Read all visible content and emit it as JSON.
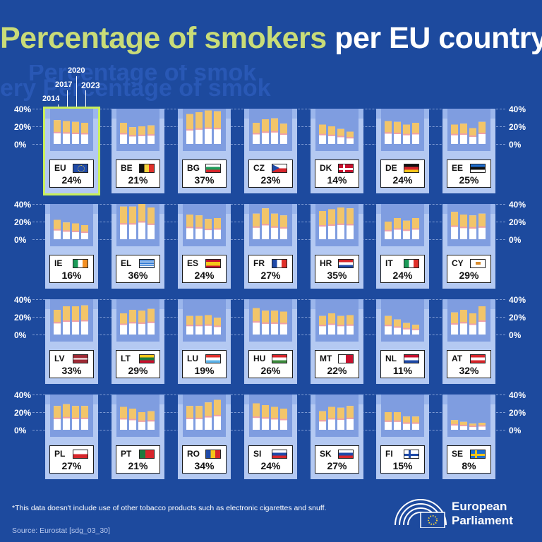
{
  "title": {
    "part1": "Percentage of smokers",
    "part2": "per EU country*"
  },
  "ghost_text": [
    "Percentage of smok",
    "ery Percentage of smok"
  ],
  "legend_years": [
    "2014",
    "2017",
    "2020",
    "2023"
  ],
  "axis_labels": [
    "40%",
    "20%",
    "0%"
  ],
  "footnote": "*This data doesn't include use of other tobacco products such as electronic cigarettes and snuff.",
  "source": "Source: Eurostat [sdg_03_30]",
  "logo": {
    "line1": "European",
    "line2": "Parliament",
    "icon": "european-parliament-hemicycle-icon"
  },
  "colors": {
    "background": "#1d4a9e",
    "title_accent": "#c9dc78",
    "card": "#b4c9f2",
    "filter": "#f2c56a",
    "paper": "#ffffff",
    "highlight": "#c9ef5a"
  },
  "chart_data": {
    "type": "bar",
    "title": "Percentage of smokers per EU country*",
    "series_years": [
      "2014",
      "2017",
      "2020",
      "2023"
    ],
    "ylim": [
      0,
      40
    ],
    "yticks": [
      "40%",
      "20%",
      "0%"
    ],
    "countries": [
      {
        "code": "EU",
        "label": "24%",
        "values": [
          27,
          26,
          25,
          24
        ],
        "flag": "eu"
      },
      {
        "code": "BE",
        "label": "21%",
        "values": [
          24,
          19,
          20,
          21
        ],
        "flag": "be"
      },
      {
        "code": "BG",
        "label": "37%",
        "values": [
          34,
          36,
          38,
          37
        ],
        "flag": "bg"
      },
      {
        "code": "CZ",
        "label": "23%",
        "values": [
          24,
          28,
          29,
          23
        ],
        "flag": "cz"
      },
      {
        "code": "DK",
        "label": "14%",
        "values": [
          22,
          20,
          17,
          14
        ],
        "flag": "dk"
      },
      {
        "code": "DE",
        "label": "24%",
        "values": [
          26,
          25,
          22,
          24
        ],
        "flag": "de"
      },
      {
        "code": "EE",
        "label": "25%",
        "values": [
          22,
          23,
          18,
          25
        ],
        "flag": "ee"
      },
      {
        "code": "IE",
        "label": "16%",
        "values": [
          22,
          19,
          18,
          16
        ],
        "flag": "ie"
      },
      {
        "code": "EL",
        "label": "36%",
        "values": [
          37,
          37,
          42,
          36
        ],
        "flag": "el"
      },
      {
        "code": "ES",
        "label": "24%",
        "values": [
          28,
          27,
          23,
          24
        ],
        "flag": "es"
      },
      {
        "code": "FR",
        "label": "27%",
        "values": [
          29,
          35,
          29,
          27
        ],
        "flag": "fr"
      },
      {
        "code": "HR",
        "label": "35%",
        "values": [
          32,
          34,
          36,
          35
        ],
        "flag": "hr"
      },
      {
        "code": "IT",
        "label": "24%",
        "values": [
          20,
          24,
          21,
          24
        ],
        "flag": "it"
      },
      {
        "code": "CY",
        "label": "29%",
        "values": [
          31,
          28,
          27,
          29
        ],
        "flag": "cy"
      },
      {
        "code": "LV",
        "label": "33%",
        "values": [
          28,
          32,
          32,
          33
        ],
        "flag": "lv"
      },
      {
        "code": "LT",
        "label": "29%",
        "values": [
          24,
          28,
          27,
          29
        ],
        "flag": "lt"
      },
      {
        "code": "LU",
        "label": "19%",
        "values": [
          21,
          21,
          22,
          19
        ],
        "flag": "lu"
      },
      {
        "code": "HU",
        "label": "26%",
        "values": [
          30,
          27,
          27,
          26
        ],
        "flag": "hu"
      },
      {
        "code": "MT",
        "label": "22%",
        "values": [
          21,
          24,
          21,
          22
        ],
        "flag": "mt"
      },
      {
        "code": "NL",
        "label": "11%",
        "values": [
          21,
          17,
          13,
          11
        ],
        "flag": "nl"
      },
      {
        "code": "AT",
        "label": "32%",
        "values": [
          25,
          28,
          24,
          32
        ],
        "flag": "at"
      },
      {
        "code": "PL",
        "label": "27%",
        "values": [
          27,
          29,
          27,
          27
        ],
        "flag": "pl"
      },
      {
        "code": "PT",
        "label": "21%",
        "values": [
          26,
          24,
          20,
          21
        ],
        "flag": "pt"
      },
      {
        "code": "RO",
        "label": "34%",
        "values": [
          27,
          27,
          31,
          34
        ],
        "flag": "ro"
      },
      {
        "code": "SI",
        "label": "24%",
        "values": [
          30,
          28,
          26,
          24
        ],
        "flag": "si"
      },
      {
        "code": "SK",
        "label": "27%",
        "values": [
          21,
          26,
          25,
          27
        ],
        "flag": "sk"
      },
      {
        "code": "FI",
        "label": "15%",
        "values": [
          20,
          20,
          15,
          15
        ],
        "flag": "fi"
      },
      {
        "code": "SE",
        "label": "8%",
        "values": [
          11,
          9,
          7,
          8
        ],
        "flag": "se"
      }
    ]
  }
}
